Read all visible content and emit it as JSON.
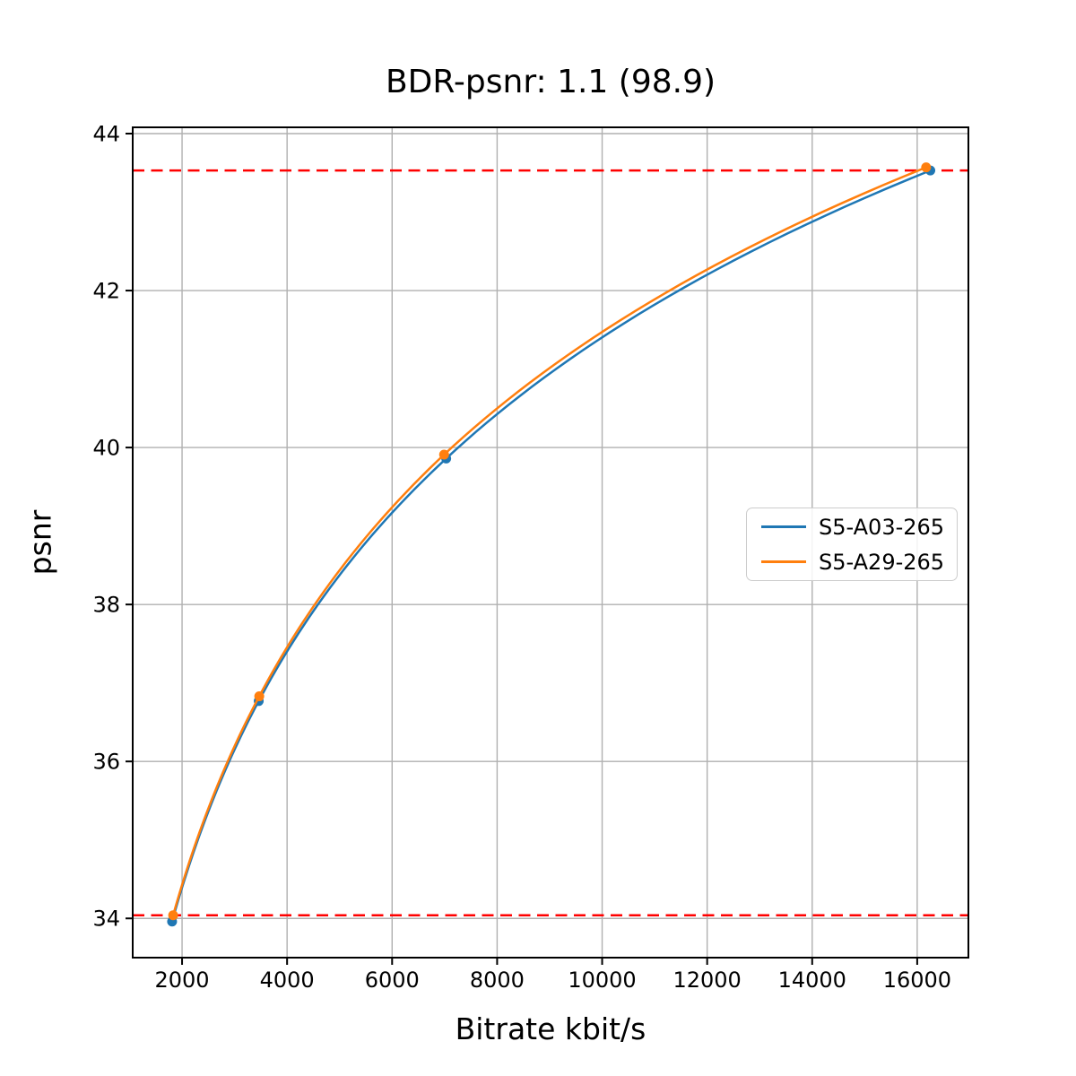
{
  "chart_data": {
    "type": "line",
    "title": "BDR-psnr: 1.1 (98.9)",
    "xlabel": "Bitrate kbit/s",
    "ylabel": "psnr",
    "xlim": [
      1060,
      16975
    ],
    "ylim": [
      33.5,
      44.08
    ],
    "xticks": [
      2000,
      4000,
      6000,
      8000,
      10000,
      12000,
      14000,
      16000
    ],
    "yticks": [
      34,
      36,
      38,
      40,
      42,
      44
    ],
    "grid": true,
    "grid_color": "#b0b0b0",
    "axes_edge_color": "#000000",
    "legend_position": "center-right",
    "series": [
      {
        "name": "S5-A03-265",
        "color": "#1f77b4",
        "marker": "circle",
        "interpolation": "log-linear",
        "points": [
          [
            1810,
            33.96
          ],
          [
            3460,
            36.77
          ],
          [
            7030,
            39.86
          ],
          [
            16250,
            43.53
          ]
        ]
      },
      {
        "name": "S5-A29-265",
        "color": "#ff7f0e",
        "marker": "circle",
        "interpolation": "log-linear",
        "points": [
          [
            1830,
            34.04
          ],
          [
            3470,
            36.83
          ],
          [
            6990,
            39.91
          ],
          [
            16170,
            43.57
          ]
        ]
      }
    ],
    "reference_lines": [
      {
        "y": 34.04,
        "color": "#ff0000",
        "style": "dashed"
      },
      {
        "y": 43.53,
        "color": "#ff0000",
        "style": "dashed"
      }
    ]
  }
}
